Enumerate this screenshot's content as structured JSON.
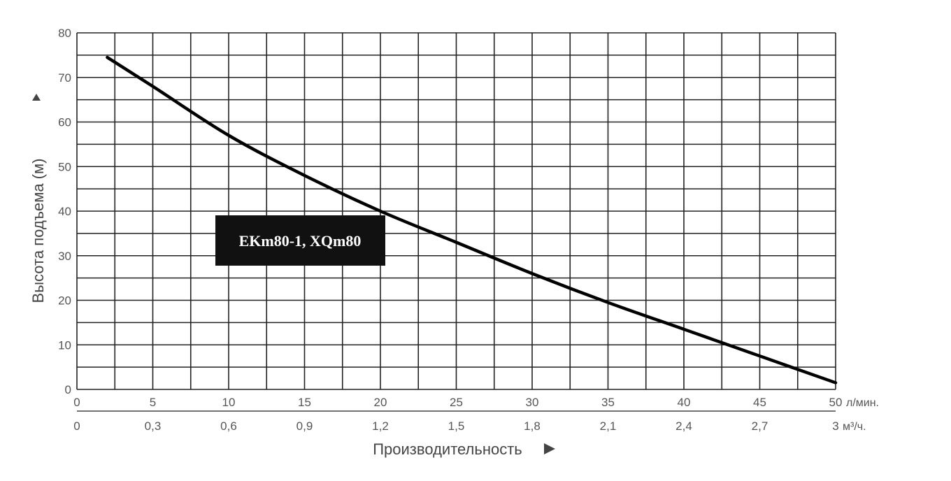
{
  "chart_data": {
    "type": "line",
    "ylabel": "Высота подъема (м)",
    "xlabel": "Производительность",
    "y_axis": {
      "range": [
        0,
        80
      ],
      "ticks": [
        0,
        10,
        20,
        30,
        40,
        50,
        60,
        70,
        80
      ]
    },
    "x_axis_primary": {
      "range": [
        0,
        50
      ],
      "ticks": [
        "0",
        "5",
        "10",
        "15",
        "20",
        "25",
        "30",
        "35",
        "40",
        "45",
        "50"
      ],
      "unit": "л/мин."
    },
    "x_axis_secondary": {
      "range": [
        0,
        3
      ],
      "ticks": [
        "0",
        "0,3",
        "0,6",
        "0,9",
        "1,2",
        "1,5",
        "1,8",
        "2,1",
        "2,4",
        "2,7",
        "3"
      ],
      "unit": "м³/ч."
    },
    "grid": true,
    "series": [
      {
        "name": "EKm80-1, XQm80",
        "color": "#000000",
        "x": [
          2,
          5,
          10,
          15,
          20,
          25,
          30,
          35,
          40,
          45,
          50
        ],
        "y": [
          74.5,
          68,
          57,
          48,
          40,
          33,
          26,
          19.5,
          13.5,
          7.5,
          1.5
        ]
      }
    ]
  }
}
